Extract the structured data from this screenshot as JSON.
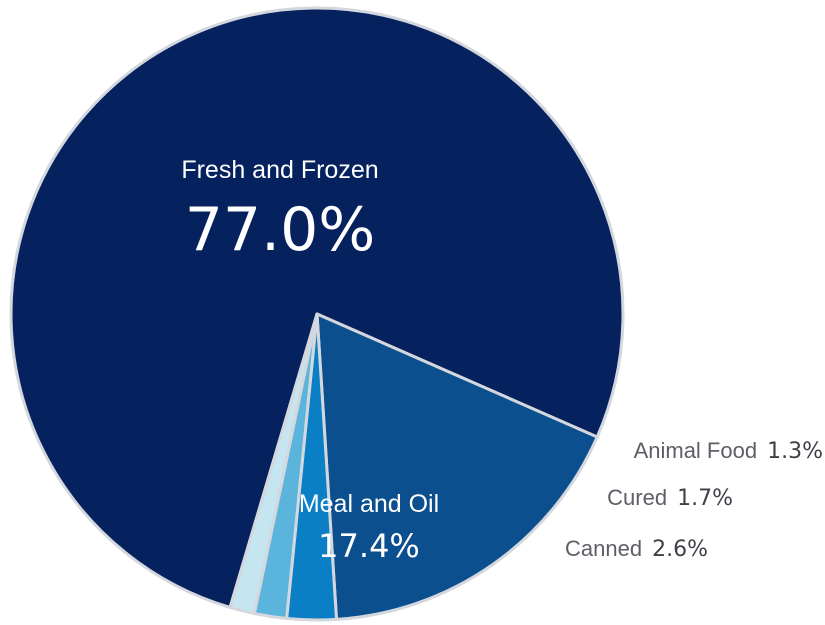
{
  "chart_data": {
    "type": "pie",
    "slices": [
      {
        "name": "Fresh and Frozen",
        "value": 77.0,
        "label": "77.0%",
        "color": "#05215e"
      },
      {
        "name": "Meal and Oil",
        "value": 17.4,
        "label": "17.4%",
        "color": "#0b4f8f"
      },
      {
        "name": "Canned",
        "value": 2.6,
        "label": "2.6%",
        "color": "#0a7fc6"
      },
      {
        "name": "Cured",
        "value": 1.7,
        "label": "1.7%",
        "color": "#5ab4dc"
      },
      {
        "name": "Animal Food",
        "value": 1.3,
        "label": "1.3%",
        "color": "#c5e5f1"
      }
    ]
  }
}
